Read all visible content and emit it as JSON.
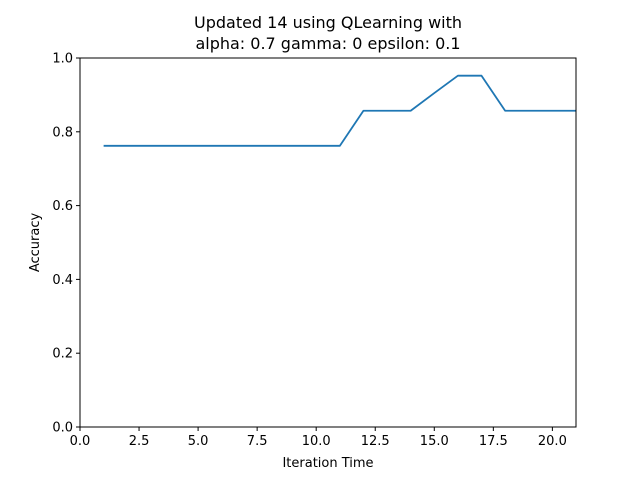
{
  "chart_data": {
    "type": "line",
    "title_line1": "Updated 14 using QLearning with",
    "title_line2": "alpha: 0.7 gamma: 0 epsilon: 0.1",
    "xlabel": "Iteration Time",
    "ylabel": "Accuracy",
    "xlim": [
      0,
      21
    ],
    "ylim": [
      0,
      1.0
    ],
    "x_ticks": [
      0.0,
      2.5,
      5.0,
      7.5,
      10.0,
      12.5,
      15.0,
      17.5,
      20.0
    ],
    "x_tick_labels": [
      "0.0",
      "2.5",
      "5.0",
      "7.5",
      "10.0",
      "12.5",
      "15.0",
      "17.5",
      "20.0"
    ],
    "y_ticks": [
      0.0,
      0.2,
      0.4,
      0.6,
      0.8,
      1.0
    ],
    "y_tick_labels": [
      "0.0",
      "0.2",
      "0.4",
      "0.6",
      "0.8",
      "1.0"
    ],
    "grid": false,
    "series": [
      {
        "color": "#1f77b4",
        "x": [
          1,
          2,
          3,
          4,
          5,
          6,
          7,
          8,
          9,
          10,
          11,
          12,
          13,
          14,
          15,
          16,
          17,
          18,
          19,
          20,
          21
        ],
        "y": [
          0.762,
          0.762,
          0.762,
          0.762,
          0.762,
          0.762,
          0.762,
          0.762,
          0.762,
          0.762,
          0.762,
          0.857,
          0.857,
          0.857,
          0.905,
          0.952,
          0.952,
          0.857,
          0.857,
          0.857,
          0.857
        ]
      }
    ]
  }
}
